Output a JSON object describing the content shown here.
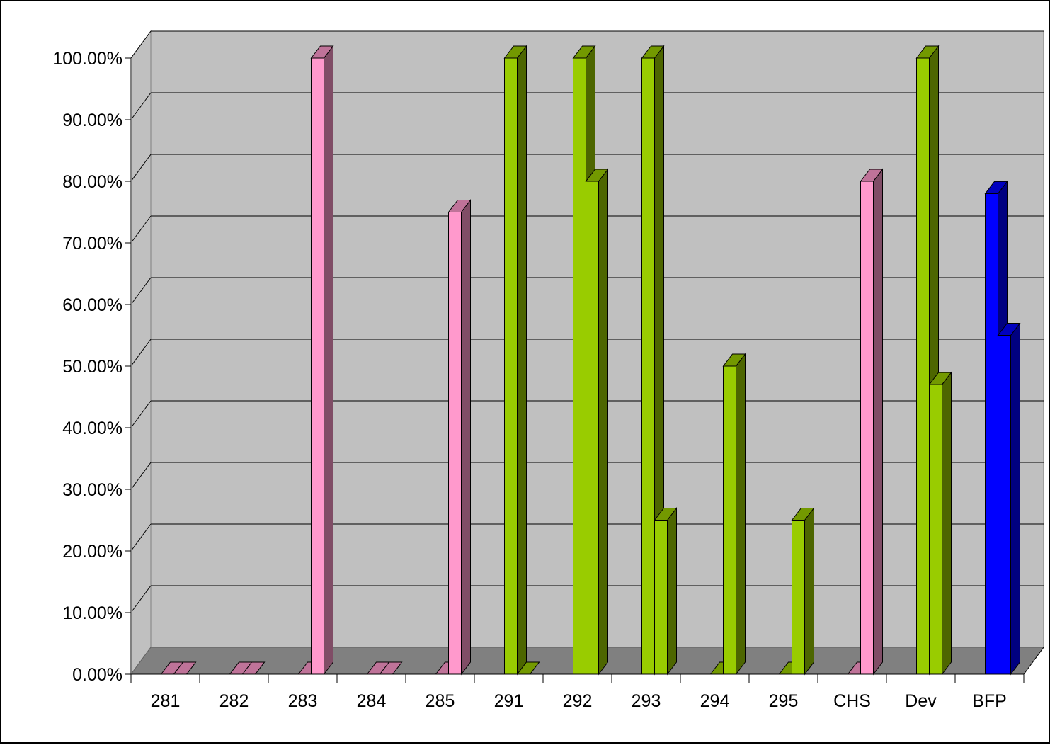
{
  "chart_data": {
    "type": "bar",
    "style": "3d-clustered-column",
    "title": "",
    "xlabel": "",
    "ylabel": "",
    "categories": [
      "281",
      "282",
      "283",
      "284",
      "285",
      "291",
      "292",
      "293",
      "294",
      "295",
      "CHS",
      "Dev",
      "BFP"
    ],
    "ylim": [
      0,
      1
    ],
    "y_tick_labels": [
      "0.00%",
      "10.00%",
      "20.00%",
      "30.00%",
      "40.00%",
      "50.00%",
      "60.00%",
      "70.00%",
      "80.00%",
      "90.00%",
      "100.00%"
    ],
    "grid": true,
    "legend": "none",
    "series": [
      {
        "values": [
          0,
          0,
          0,
          0,
          0,
          1.0,
          1.0,
          1.0,
          0,
          0,
          0,
          1.0,
          0.78
        ]
      },
      {
        "values": [
          0,
          0,
          1.0,
          0,
          0.75,
          0,
          0.8,
          0.25,
          0.5,
          0.25,
          0.8,
          0.47,
          0.55
        ]
      }
    ],
    "bar_colors": [
      "#FF99CC",
      "#FF99CC",
      "#FF99CC",
      "#FF99CC",
      "#FF99CC",
      "#99CC00",
      "#99CC00",
      "#99CC00",
      "#99CC00",
      "#99CC00",
      "#FF99CC",
      "#99CC00",
      "#0000FF"
    ],
    "colors": {
      "wall": "#C0C0C0",
      "floor": "#808080",
      "gridline": "#000000"
    }
  }
}
